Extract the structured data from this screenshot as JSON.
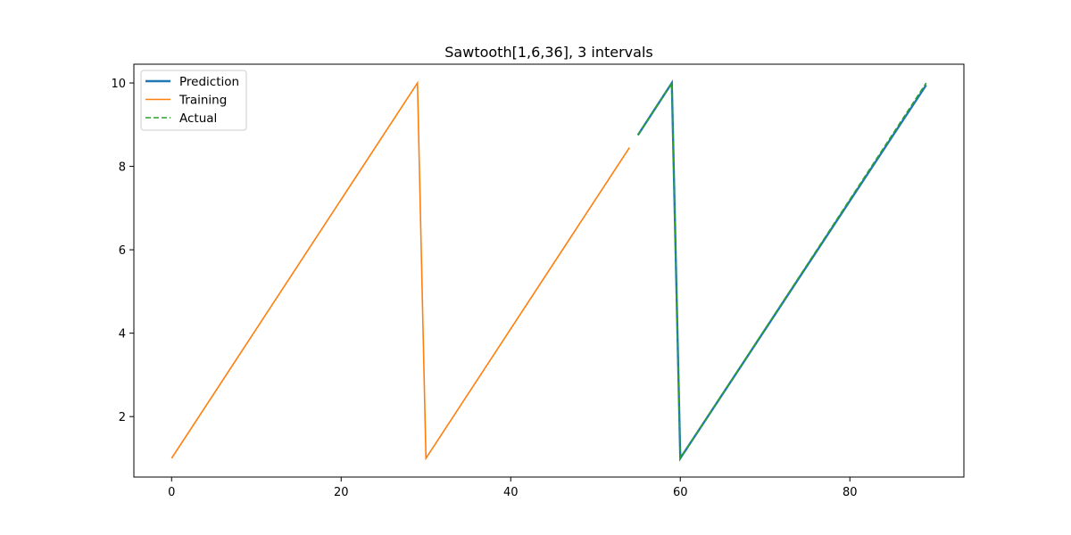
{
  "chart_data": {
    "type": "line",
    "title": "Sawtooth[1,6,36], 3 intervals",
    "xlabel": "",
    "ylabel": "",
    "xlim": [
      -4.45,
      93.45
    ],
    "ylim": [
      0.55,
      10.45
    ],
    "xticks": [
      0,
      20,
      40,
      60,
      80
    ],
    "yticks": [
      2,
      4,
      6,
      8,
      10
    ],
    "grid": false,
    "legend": "top-left",
    "series": [
      {
        "name": "Prediction",
        "color": "#1f77b4",
        "style": "solid",
        "width": 2.4,
        "points": [
          [
            55,
            8.75
          ],
          [
            59,
            10
          ],
          [
            60,
            1
          ],
          [
            89,
            9.95
          ]
        ]
      },
      {
        "name": "Training",
        "color": "#ff7f0e",
        "style": "solid",
        "width": 1.6,
        "points": [
          [
            0,
            1
          ],
          [
            29,
            10
          ],
          [
            30,
            1
          ],
          [
            54,
            8.45
          ]
        ]
      },
      {
        "name": "Actual",
        "color": "#2ca02c",
        "style": "dashed",
        "width": 1.6,
        "points": [
          [
            55,
            8.75
          ],
          [
            59,
            10
          ],
          [
            60,
            1
          ],
          [
            89,
            10
          ]
        ]
      }
    ]
  }
}
